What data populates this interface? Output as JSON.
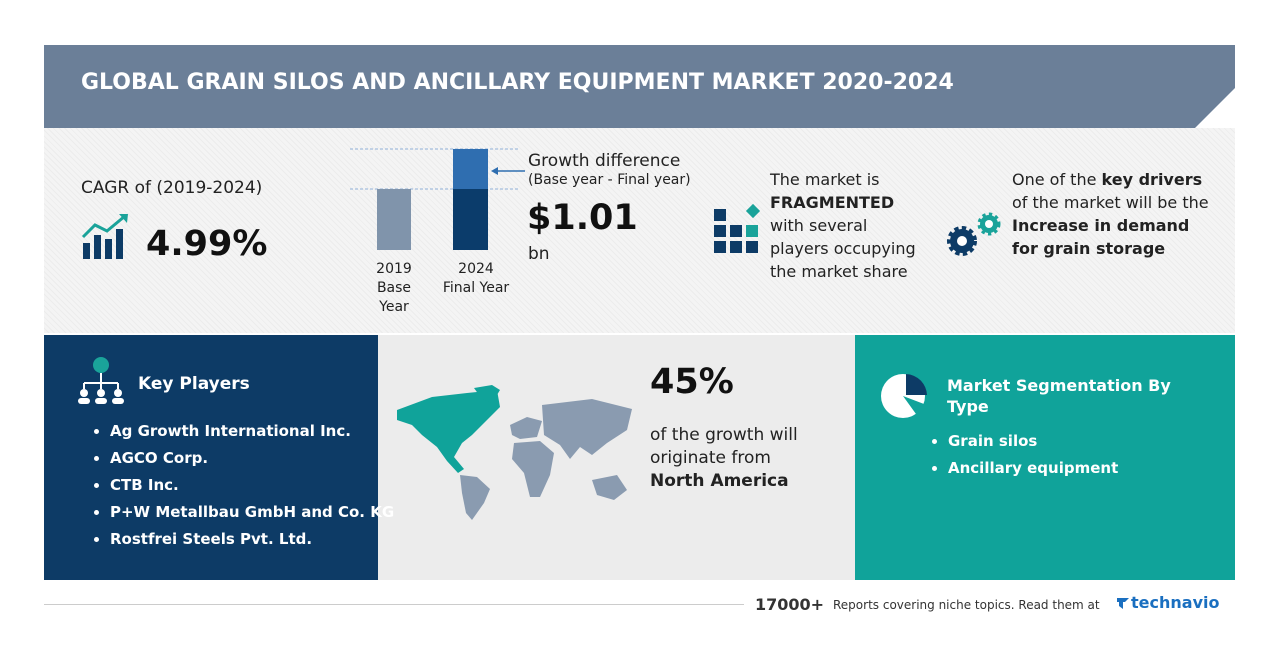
{
  "header": {
    "title": "GLOBAL GRAIN SILOS AND ANCILLARY EQUIPMENT MARKET 2020-2024"
  },
  "cagr": {
    "label": "CAGR of (2019-2024)",
    "value": "4.99%"
  },
  "growth": {
    "base_year": "2019",
    "base_label": "Base Year",
    "final_year": "2024",
    "final_label": "Final Year",
    "title": "Growth difference",
    "subtitle": "(Base year - Final year)",
    "value": "$1.01",
    "unit": "bn"
  },
  "fragmented": {
    "before": "The market is",
    "emphasis": "FRAGMENTED",
    "after": "with several players occupying the market share"
  },
  "drivers": {
    "before": "One of the",
    "emphasis": "key drivers",
    "middle": "of the market will be the",
    "highlight": "Increase in demand for grain storage"
  },
  "key_players": {
    "title": "Key Players",
    "items": [
      "Ag Growth International Inc.",
      "AGCO Corp.",
      "CTB Inc.",
      "P+W Metallbau GmbH and Co. KG",
      "Rostfrei Steels Pvt. Ltd."
    ]
  },
  "region": {
    "share": "45%",
    "text": "of the growth will originate from",
    "name": "North America"
  },
  "segmentation": {
    "title": "Market Segmentation By Type",
    "items": [
      "Grain silos",
      "Ancillary equipment"
    ]
  },
  "footer": {
    "count": "17000+",
    "text": "Reports covering niche topics. Read them at",
    "brand": "technavio"
  }
}
